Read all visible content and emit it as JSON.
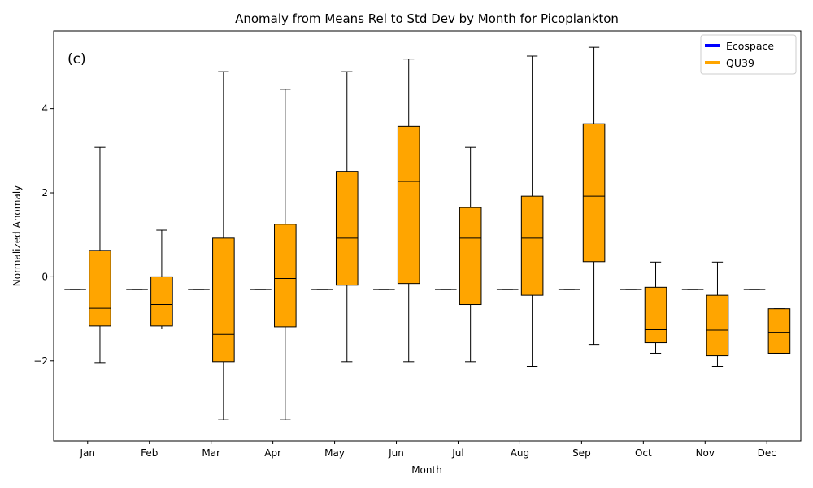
{
  "chart_data": {
    "type": "box",
    "title": "Anomaly from Means Rel to Std Dev by Month for Picoplankton",
    "panel_label": "(c)",
    "xlabel": "Month",
    "ylabel": "Normalized Anomaly",
    "ylim": [
      -3.9,
      5.85
    ],
    "yticks": [
      -2,
      0,
      2,
      4
    ],
    "ytick_labels": [
      "−2",
      "0",
      "2",
      "4"
    ],
    "grid": false,
    "legend_position": "top-right",
    "categories": [
      "Jan",
      "Feb",
      "Mar",
      "Apr",
      "May",
      "Jun",
      "Jul",
      "Aug",
      "Sep",
      "Oct",
      "Nov",
      "Dec"
    ],
    "series": [
      {
        "name": "Ecospace",
        "color": "#0000ff",
        "boxes": [
          {
            "whisker_low": -0.3,
            "q1": -0.3,
            "median": -0.3,
            "q3": -0.3,
            "whisker_high": -0.3
          },
          {
            "whisker_low": -0.3,
            "q1": -0.3,
            "median": -0.3,
            "q3": -0.3,
            "whisker_high": -0.3
          },
          {
            "whisker_low": -0.3,
            "q1": -0.3,
            "median": -0.3,
            "q3": -0.3,
            "whisker_high": -0.3
          },
          {
            "whisker_low": -0.3,
            "q1": -0.3,
            "median": -0.3,
            "q3": -0.3,
            "whisker_high": -0.3
          },
          {
            "whisker_low": -0.3,
            "q1": -0.3,
            "median": -0.3,
            "q3": -0.3,
            "whisker_high": -0.3
          },
          {
            "whisker_low": -0.3,
            "q1": -0.3,
            "median": -0.3,
            "q3": -0.3,
            "whisker_high": -0.3
          },
          {
            "whisker_low": -0.3,
            "q1": -0.3,
            "median": -0.3,
            "q3": -0.3,
            "whisker_high": -0.3
          },
          {
            "whisker_low": -0.3,
            "q1": -0.3,
            "median": -0.3,
            "q3": -0.3,
            "whisker_high": -0.3
          },
          {
            "whisker_low": -0.3,
            "q1": -0.3,
            "median": -0.3,
            "q3": -0.3,
            "whisker_high": -0.3
          },
          {
            "whisker_low": -0.3,
            "q1": -0.3,
            "median": -0.3,
            "q3": -0.3,
            "whisker_high": -0.3
          },
          {
            "whisker_low": -0.3,
            "q1": -0.3,
            "median": -0.3,
            "q3": -0.3,
            "whisker_high": -0.3
          },
          {
            "whisker_low": -0.3,
            "q1": -0.3,
            "median": -0.3,
            "q3": -0.3,
            "whisker_high": -0.3
          }
        ]
      },
      {
        "name": "QU39",
        "color": "#ffa500",
        "boxes": [
          {
            "whisker_low": -2.04,
            "q1": -1.17,
            "median": -0.75,
            "q3": 0.63,
            "whisker_high": 3.08
          },
          {
            "whisker_low": -1.24,
            "q1": -1.17,
            "median": -0.66,
            "q3": 0.0,
            "whisker_high": 1.11
          },
          {
            "whisker_low": -3.4,
            "q1": -2.02,
            "median": -1.37,
            "q3": 0.92,
            "whisker_high": 4.88
          },
          {
            "whisker_low": -3.4,
            "q1": -1.19,
            "median": -0.04,
            "q3": 1.25,
            "whisker_high": 4.46
          },
          {
            "whisker_low": -2.02,
            "q1": -0.2,
            "median": 0.92,
            "q3": 2.51,
            "whisker_high": 4.88
          },
          {
            "whisker_low": -2.02,
            "q1": -0.16,
            "median": 2.27,
            "q3": 3.58,
            "whisker_high": 5.18
          },
          {
            "whisker_low": -2.02,
            "q1": -0.66,
            "median": 0.92,
            "q3": 1.65,
            "whisker_high": 3.08
          },
          {
            "whisker_low": -2.13,
            "q1": -0.44,
            "median": 0.92,
            "q3": 1.92,
            "whisker_high": 5.25
          },
          {
            "whisker_low": -1.61,
            "q1": 0.36,
            "median": 1.92,
            "q3": 3.64,
            "whisker_high": 5.46
          },
          {
            "whisker_low": -1.82,
            "q1": -1.57,
            "median": -1.26,
            "q3": -0.25,
            "whisker_high": 0.35
          },
          {
            "whisker_low": -2.13,
            "q1": -1.88,
            "median": -1.27,
            "q3": -0.44,
            "whisker_high": 0.35
          },
          {
            "whisker_low": -1.82,
            "q1": -1.82,
            "median": -1.32,
            "q3": -0.76,
            "whisker_high": -0.76
          }
        ]
      }
    ]
  }
}
